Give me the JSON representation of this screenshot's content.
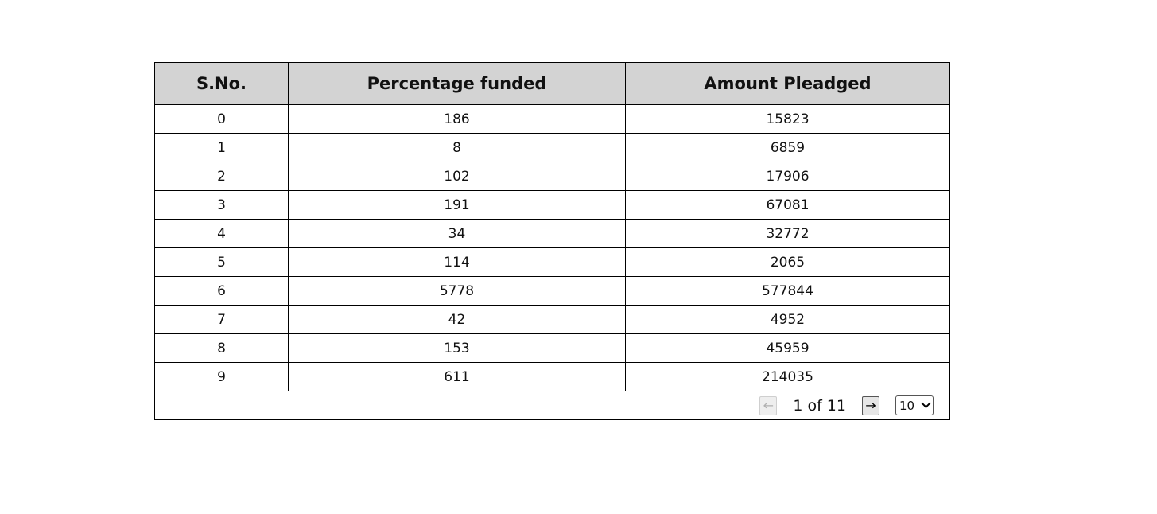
{
  "table": {
    "headers": [
      "S.No.",
      "Percentage funded",
      "Amount Pleadged"
    ],
    "rows": [
      [
        "0",
        "186",
        "15823"
      ],
      [
        "1",
        "8",
        "6859"
      ],
      [
        "2",
        "102",
        "17906"
      ],
      [
        "3",
        "191",
        "67081"
      ],
      [
        "4",
        "34",
        "32772"
      ],
      [
        "5",
        "114",
        "2065"
      ],
      [
        "6",
        "5778",
        "577844"
      ],
      [
        "7",
        "42",
        "4952"
      ],
      [
        "8",
        "153",
        "45959"
      ],
      [
        "9",
        "611",
        "214035"
      ]
    ]
  },
  "pagination": {
    "prev_label": "←",
    "next_label": "→",
    "page_info": "1 of 11",
    "page_size": "10",
    "icons": [
      "arrow-left-icon",
      "arrow-right-icon",
      "chevron-down-icon"
    ]
  }
}
